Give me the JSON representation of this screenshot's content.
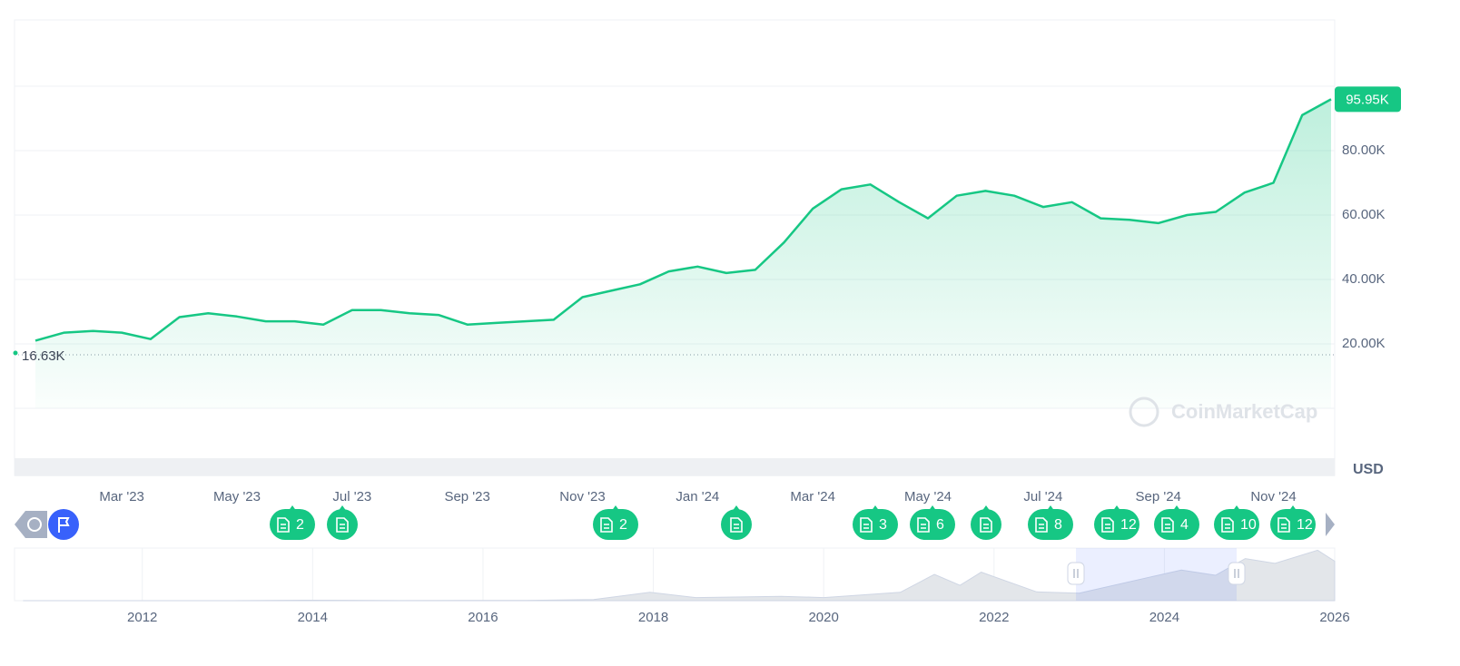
{
  "chart_data": {
    "type": "line",
    "categories": [
      null,
      null,
      null,
      "Mar '23",
      null,
      null,
      null,
      "May '23",
      null,
      null,
      null,
      "Jul '23",
      null,
      null,
      null,
      "Sep '23",
      null,
      null,
      null,
      "Nov '23",
      null,
      null,
      null,
      "Jan '24",
      null,
      null,
      null,
      "Mar '24",
      null,
      null,
      null,
      "May '24",
      null,
      null,
      null,
      "Jul '24",
      null,
      null,
      null,
      "Sep '24",
      null,
      null,
      null,
      "Nov '24",
      null,
      null
    ],
    "series": [
      {
        "color": "#16c784",
        "values": [
          21000,
          23500,
          24000,
          23500,
          21500,
          28300,
          29500,
          28500,
          27000,
          27000,
          26000,
          30500,
          30500,
          29500,
          29000,
          26000,
          26500,
          27000,
          27500,
          34500,
          36500,
          38500,
          42500,
          44000,
          42000,
          43000,
          51500,
          62000,
          68000,
          69500,
          64000,
          59000,
          66000,
          67500,
          66000,
          62500,
          64000,
          59000,
          58500,
          57500,
          60000,
          61000,
          67000,
          70000,
          91000,
          95950
        ]
      }
    ],
    "ylim": [
      0,
      120000
    ],
    "yticks": [
      {
        "value": 20000,
        "label": "20.00K"
      },
      {
        "value": 40000,
        "label": "40.00K"
      },
      {
        "value": 60000,
        "label": "60.00K"
      },
      {
        "value": 80000,
        "label": "80.00K"
      }
    ],
    "grid": true,
    "current_price": {
      "value": 95950,
      "label": "95.95K"
    },
    "low": {
      "value": 16630,
      "label": "16.63K"
    },
    "currency": "USD",
    "watermark": "CoinMarketCap",
    "events": [
      2,
      null,
      2,
      null,
      3,
      6,
      null,
      8,
      12,
      4,
      10,
      12
    ],
    "navigator": {
      "x": [
        2010.6,
        2013.0,
        2013.9,
        2015.0,
        2016.5,
        2017.3,
        2017.96,
        2018.5,
        2019.5,
        2020.0,
        2020.9,
        2021.3,
        2021.6,
        2021.85,
        2022.5,
        2023.0,
        2024.2,
        2024.6,
        2024.95,
        2025.3,
        2025.8,
        2026.0
      ],
      "values": [
        0,
        100,
        1000,
        300,
        600,
        2500,
        19000,
        7000,
        10000,
        7000,
        19000,
        60000,
        35000,
        65000,
        20000,
        17000,
        70000,
        58000,
        96000,
        85000,
        115000,
        90000
      ],
      "xlim": [
        2010.5,
        2026
      ],
      "ylim": [
        0,
        120000
      ],
      "xticks": [
        2012,
        2014,
        2016,
        2018,
        2020,
        2022,
        2024,
        2026
      ]
    }
  }
}
